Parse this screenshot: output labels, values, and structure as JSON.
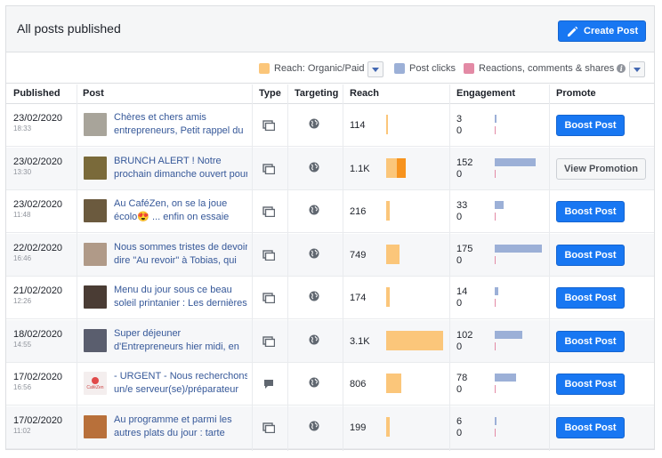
{
  "header": {
    "title": "All posts published",
    "create_label": "Create Post"
  },
  "legend": {
    "reach": "Reach: Organic/Paid",
    "clicks": "Post clicks",
    "reactions": "Reactions, comments & shares"
  },
  "colors": {
    "organic": "#fbc67a",
    "paid": "#f7931e",
    "clicks": "#9cb0d7",
    "reactions": "#e38aa5",
    "accent": "#1877f2"
  },
  "columns": {
    "published": "Published",
    "post": "Post",
    "type": "Type",
    "targeting": "Targeting",
    "reach": "Reach",
    "engagement": "Engagement",
    "promote": "Promote"
  },
  "rows": [
    {
      "date": "23/02/2020",
      "time": "18:33",
      "line1": "Chères et chers amis",
      "line2": "entrepreneurs, Petit rappel du",
      "type": "photo",
      "reach": "114",
      "organic": 114,
      "paid": 0,
      "clicks": "3",
      "reactions": "0",
      "clicks_n": 3,
      "action": "Boost Post",
      "action_type": "boost",
      "thumb": "#a8a49a"
    },
    {
      "date": "23/02/2020",
      "time": "13:30",
      "line1": "BRUNCH ALERT ! Notre",
      "line2": "prochain dimanche ouvert pour",
      "type": "photo",
      "reach": "1.1K",
      "organic": 600,
      "paid": 500,
      "clicks": "152",
      "reactions": "0",
      "clicks_n": 152,
      "action": "View Promotion",
      "action_type": "view",
      "thumb": "#7a6a3a"
    },
    {
      "date": "23/02/2020",
      "time": "11:48",
      "line1": "Au CaféZen, on se la joue",
      "line2": "écolo😍 ... enfin on essaie",
      "type": "photo",
      "reach": "216",
      "organic": 216,
      "paid": 0,
      "clicks": "33",
      "reactions": "0",
      "clicks_n": 33,
      "action": "Boost Post",
      "action_type": "boost",
      "thumb": "#6b5a3e"
    },
    {
      "date": "22/02/2020",
      "time": "16:46",
      "line1": "Nous sommes tristes de devoir",
      "line2": "dire \"Au revoir\" à Tobias, qui",
      "type": "photo",
      "reach": "749",
      "organic": 749,
      "paid": 0,
      "clicks": "175",
      "reactions": "0",
      "clicks_n": 175,
      "action": "Boost Post",
      "action_type": "boost",
      "thumb": "#b09a88"
    },
    {
      "date": "21/02/2020",
      "time": "12:26",
      "line1": "Menu du jour sous ce beau",
      "line2": "soleil printanier : Les dernières",
      "type": "photo",
      "reach": "174",
      "organic": 174,
      "paid": 0,
      "clicks": "14",
      "reactions": "0",
      "clicks_n": 14,
      "action": "Boost Post",
      "action_type": "boost",
      "thumb": "#4a3c34"
    },
    {
      "date": "18/02/2020",
      "time": "14:55",
      "line1": "Super déjeuner",
      "line2": "d'Entrepreneurs hier midi, en",
      "type": "photo",
      "reach": "3.1K",
      "organic": 3100,
      "paid": 0,
      "clicks": "102",
      "reactions": "0",
      "clicks_n": 102,
      "action": "Boost Post",
      "action_type": "boost",
      "thumb": "#5a5e6e"
    },
    {
      "date": "17/02/2020",
      "time": "16:56",
      "line1": "- URGENT - Nous recherchons",
      "line2": "un/e serveur(se)/préparateur",
      "type": "status",
      "reach": "806",
      "organic": 806,
      "paid": 0,
      "clicks": "78",
      "reactions": "0",
      "clicks_n": 78,
      "action": "Boost Post",
      "action_type": "boost",
      "thumb": "#f4eeee",
      "thumb_text": "CaféZen"
    },
    {
      "date": "17/02/2020",
      "time": "11:02",
      "line1": "Au programme et parmi les",
      "line2": "autres plats du jour : tarte",
      "type": "photo",
      "reach": "199",
      "organic": 199,
      "paid": 0,
      "clicks": "6",
      "reactions": "0",
      "clicks_n": 6,
      "action": "Boost Post",
      "action_type": "boost",
      "thumb": "#b8703a"
    }
  ]
}
